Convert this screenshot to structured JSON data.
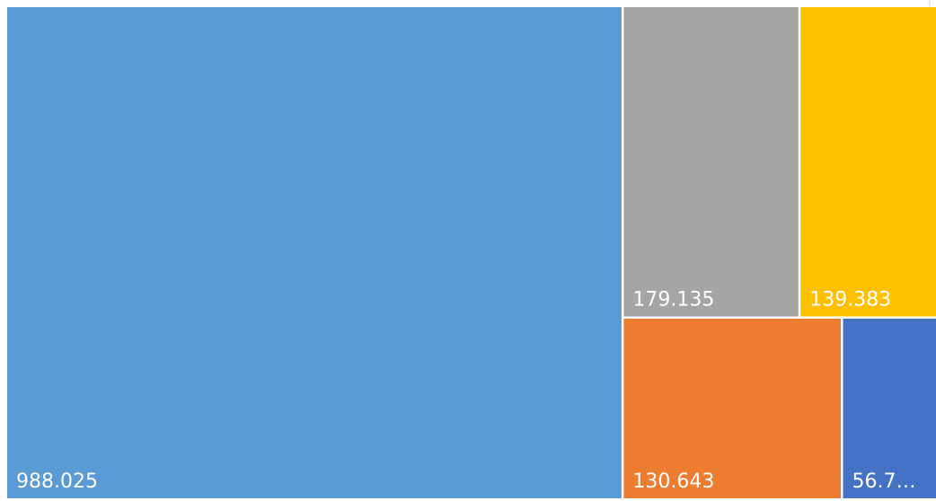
{
  "chart_data": {
    "type": "treemap",
    "values": [
      988.025,
      179.135,
      139.383,
      130.643,
      56.7
    ],
    "value_labels": [
      "988.025",
      "179.135",
      "139.383",
      "130.643",
      "56.7…"
    ],
    "colors": [
      "#5b9bd5",
      "#a5a5a5",
      "#ffc000",
      "#ed7d31",
      "#4472c4"
    ]
  }
}
